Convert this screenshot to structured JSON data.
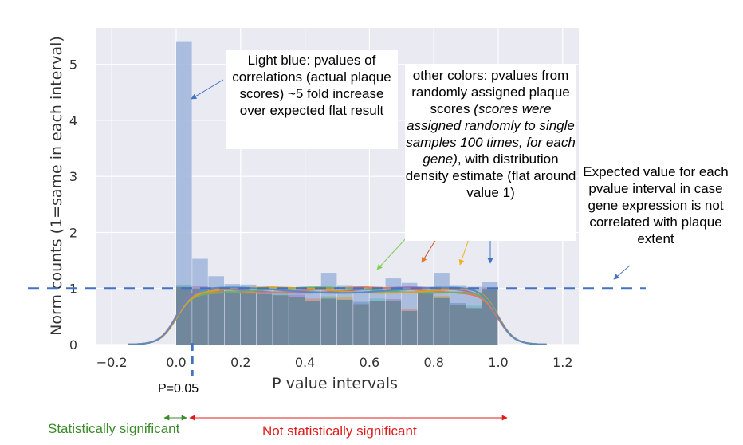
{
  "chart_data": {
    "type": "bar",
    "xlabel": "P value intervals",
    "ylabel": "Norm counts (1=same in each interval)",
    "xlim": [
      -0.25,
      1.25
    ],
    "ylim": [
      0,
      5.65
    ],
    "xticks": [
      "−0.2",
      "0.0",
      "0.2",
      "0.4",
      "0.6",
      "0.8",
      "1.0",
      "1.2"
    ],
    "xtick_values": [
      -0.2,
      0.0,
      0.2,
      0.4,
      0.6,
      0.8,
      1.0,
      1.2
    ],
    "yticks": [
      "0",
      "1",
      "2",
      "3",
      "4",
      "5"
    ],
    "ytick_values": [
      0,
      1,
      2,
      3,
      4,
      5
    ],
    "grid": true,
    "bin_edges": [
      0.0,
      0.05,
      0.1,
      0.15,
      0.2,
      0.25,
      0.3,
      0.35,
      0.4,
      0.45,
      0.5,
      0.55,
      0.6,
      0.65,
      0.7,
      0.75,
      0.8,
      0.85,
      0.9,
      0.95,
      1.0
    ],
    "actual_values": [
      5.4,
      1.53,
      1.22,
      1.08,
      1.07,
      1.03,
      1.02,
      1.0,
      1.03,
      1.28,
      1.06,
      1.05,
      1.02,
      1.18,
      1.1,
      1.02,
      1.28,
      1.06,
      1.03,
      1.12
    ],
    "random_values": [
      1.03,
      1.0,
      0.98,
      0.95,
      0.92,
      0.9,
      0.88,
      0.85,
      0.78,
      0.82,
      0.8,
      0.72,
      0.78,
      0.77,
      0.6,
      0.92,
      0.83,
      0.7,
      0.65,
      0.98
    ],
    "expected_value": 1.0,
    "significance_threshold": 0.05
  },
  "annotations": {
    "light_blue_label": "Light blue: pvalues of correlations (actual plaque scores) ~5 fold increase over expected flat result",
    "other_colors_lead": "other colors: pvalues from randomly assigned plaque scores ",
    "other_colors_italic": "(scores were assigned randomly to single samples 100 times, for each gene)",
    "other_colors_tail": ", with distribution density estimate (flat around value 1)",
    "expected_label": "Expected value for each pvalue interval in case gene expression is not correlated with plaque extent",
    "p_label": "P=0.05",
    "significant_label": "Statistically significant",
    "not_significant_label": "Not statistically significant"
  },
  "colors": {
    "plot_background": "#eaeaf2",
    "actual_bar": "#a4b8dc",
    "random_bar": "#6e8498",
    "dashed_line": "#4472c4",
    "significant": "#3a8a2a",
    "not_significant": "#e01b1b",
    "kde_lines": [
      "#5ab4b4",
      "#9c72b8",
      "#e07a5a",
      "#6ab06a",
      "#d4a02a",
      "#5a8ac4"
    ]
  }
}
